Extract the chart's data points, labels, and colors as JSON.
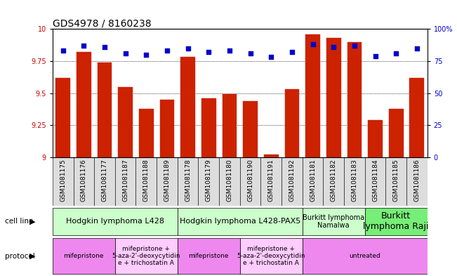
{
  "title": "GDS4978 / 8160238",
  "samples": [
    "GSM1081175",
    "GSM1081176",
    "GSM1081177",
    "GSM1081187",
    "GSM1081188",
    "GSM1081189",
    "GSM1081178",
    "GSM1081179",
    "GSM1081180",
    "GSM1081190",
    "GSM1081191",
    "GSM1081192",
    "GSM1081181",
    "GSM1081182",
    "GSM1081183",
    "GSM1081184",
    "GSM1081185",
    "GSM1081186"
  ],
  "red_values": [
    9.62,
    9.82,
    9.74,
    9.55,
    9.38,
    9.45,
    9.78,
    9.46,
    9.49,
    9.44,
    9.02,
    9.53,
    9.96,
    9.93,
    9.9,
    9.29,
    9.38,
    9.62
  ],
  "blue_values": [
    83,
    87,
    86,
    81,
    80,
    83,
    85,
    82,
    83,
    81,
    78,
    82,
    88,
    86,
    87,
    79,
    81,
    85
  ],
  "ylim_left": [
    9.0,
    10.0
  ],
  "ylim_right": [
    0,
    100
  ],
  "yticks_left": [
    9.0,
    9.25,
    9.5,
    9.75,
    10.0
  ],
  "ytick_labels_left": [
    "9",
    "9.25",
    "9.5",
    "9.75",
    "10"
  ],
  "yticks_right": [
    0,
    25,
    50,
    75,
    100
  ],
  "ytick_labels_right": [
    "0",
    "25",
    "50",
    "75",
    "100%"
  ],
  "cell_line_groups": [
    {
      "label": "Hodgkin lymphoma L428",
      "start": 0,
      "end": 6,
      "color": "#ccffcc"
    },
    {
      "label": "Hodgkin lymphoma L428-PAX5",
      "start": 6,
      "end": 12,
      "color": "#ccffcc"
    },
    {
      "label": "Burkitt lymphoma\nNamalwa",
      "start": 12,
      "end": 15,
      "color": "#ccffcc",
      "fontsize": 7
    },
    {
      "label": "Burkitt\nlymphoma Raji",
      "start": 15,
      "end": 18,
      "color": "#77ee77",
      "fontsize": 9
    }
  ],
  "protocol_groups": [
    {
      "label": "mifepristone",
      "start": 0,
      "end": 3,
      "color": "#ee88ee"
    },
    {
      "label": "mifepristone +\n5-aza-2'-deoxycytidin\ne + trichostatin A",
      "start": 3,
      "end": 6,
      "color": "#ffccff"
    },
    {
      "label": "mifepristone",
      "start": 6,
      "end": 9,
      "color": "#ee88ee"
    },
    {
      "label": "mifepristone +\n5-aza-2'-deoxycytidin\ne + trichostatin A",
      "start": 9,
      "end": 12,
      "color": "#ffccff"
    },
    {
      "label": "untreated",
      "start": 12,
      "end": 18,
      "color": "#ee88ee"
    }
  ],
  "bar_color": "#cc2200",
  "dot_color": "#0000cc",
  "bg_color": "#ffffff",
  "left_tick_color": "#cc0000",
  "right_tick_color": "#0000cc",
  "sample_bg_color": "#dddddd",
  "title_fontsize": 10,
  "tick_fontsize": 7,
  "sample_fontsize": 6.5,
  "cell_fontsize": 8,
  "prot_fontsize": 6.5,
  "legend_fontsize": 8
}
